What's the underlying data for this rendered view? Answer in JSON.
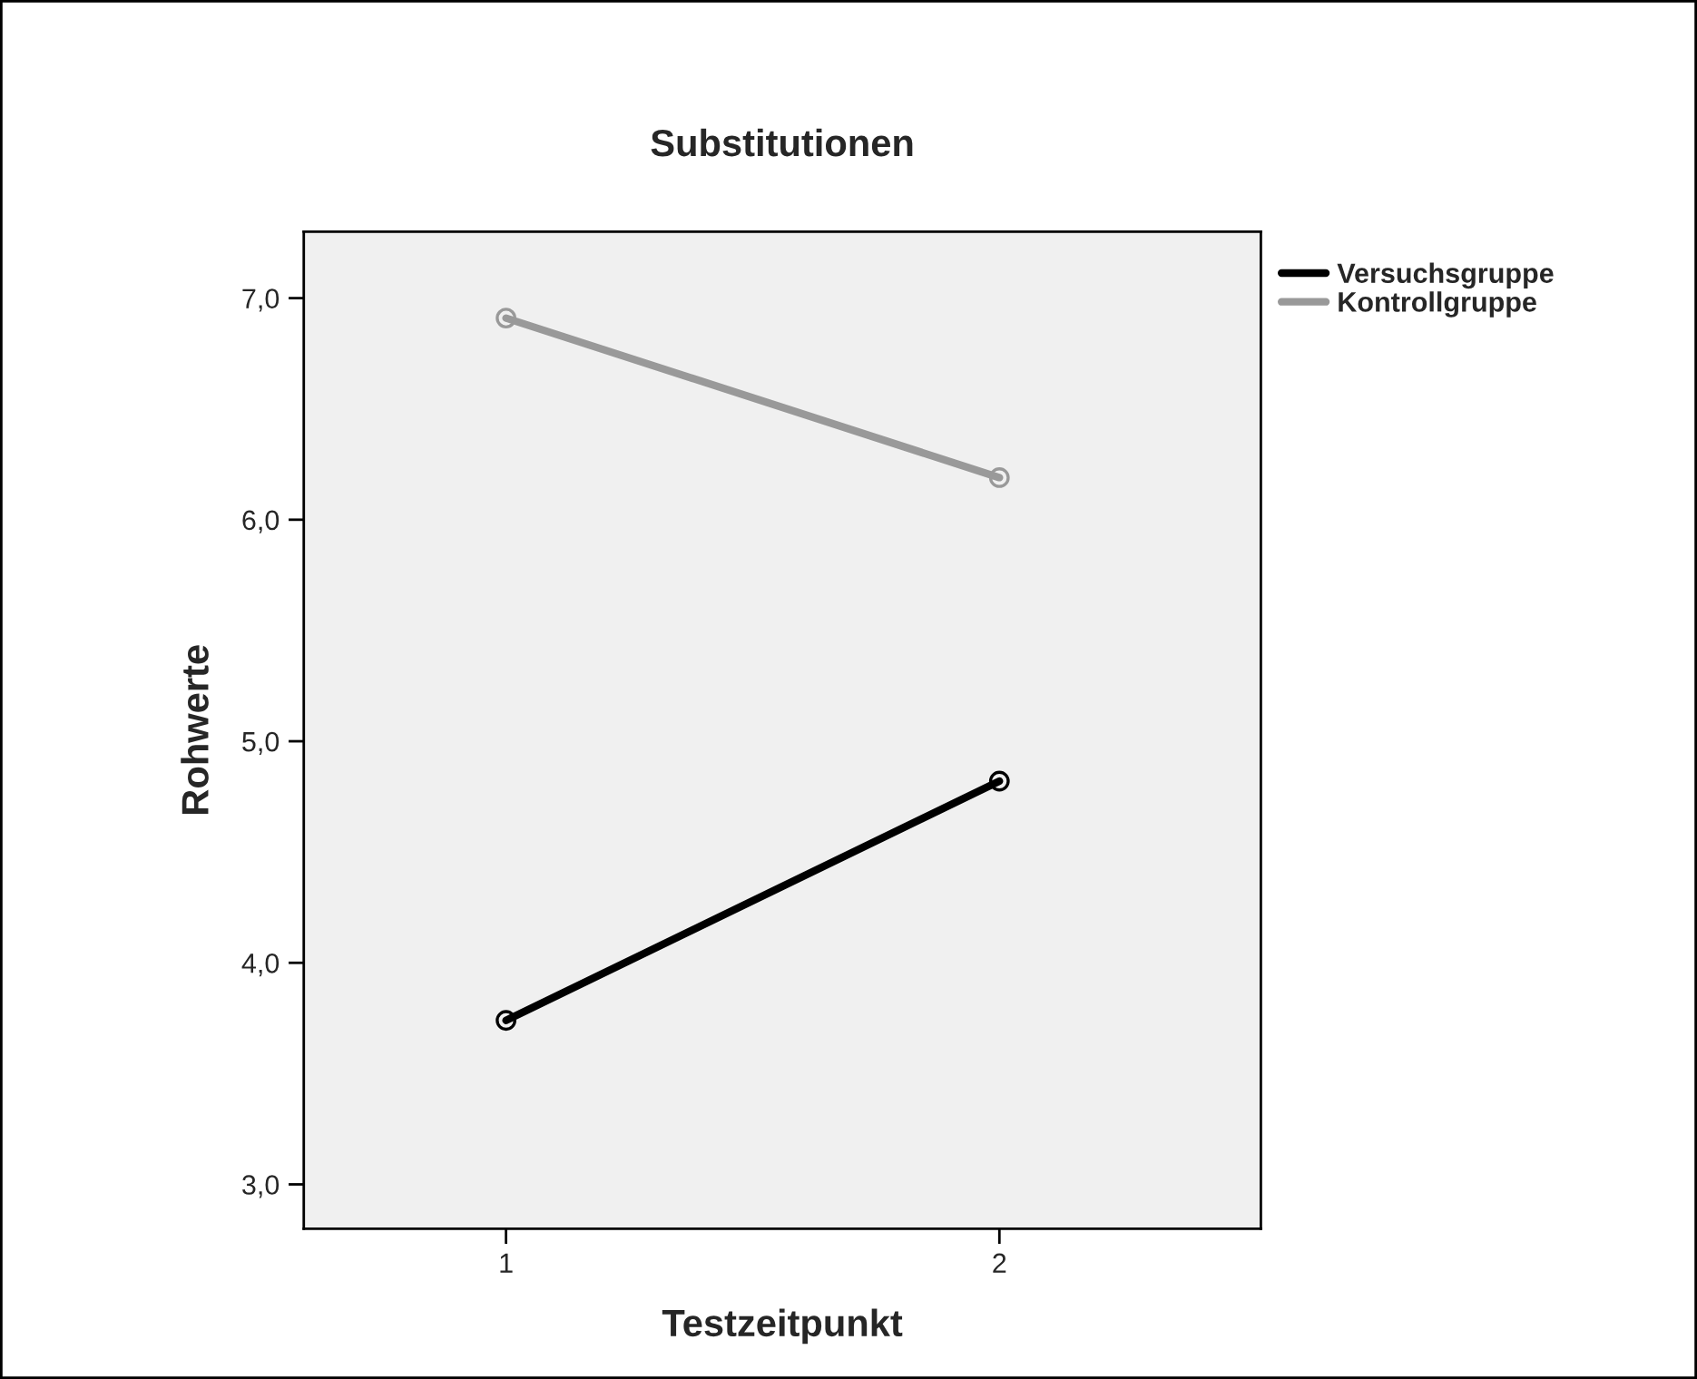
{
  "chart_data": {
    "type": "line",
    "title": "Substitutionen",
    "xlabel": "Testzeitpunkt",
    "ylabel": "Rohwerte",
    "categories": [
      "1",
      "2"
    ],
    "series": [
      {
        "name": "Versuchsgruppe",
        "color": "#000000",
        "values": [
          3.74,
          4.82
        ]
      },
      {
        "name": "Kontrollgruppe",
        "color": "#999999",
        "values": [
          6.91,
          6.19
        ]
      }
    ],
    "ylim": [
      2.8,
      7.3
    ],
    "yticks": [
      {
        "value": 3,
        "label": "3,0"
      },
      {
        "value": 4,
        "label": "4,0"
      },
      {
        "value": 5,
        "label": "5,0"
      },
      {
        "value": 6,
        "label": "6,0"
      },
      {
        "value": 7,
        "label": "7,0"
      }
    ],
    "grid": false,
    "legend": "right",
    "marker": "circle",
    "line_style": "solid"
  }
}
